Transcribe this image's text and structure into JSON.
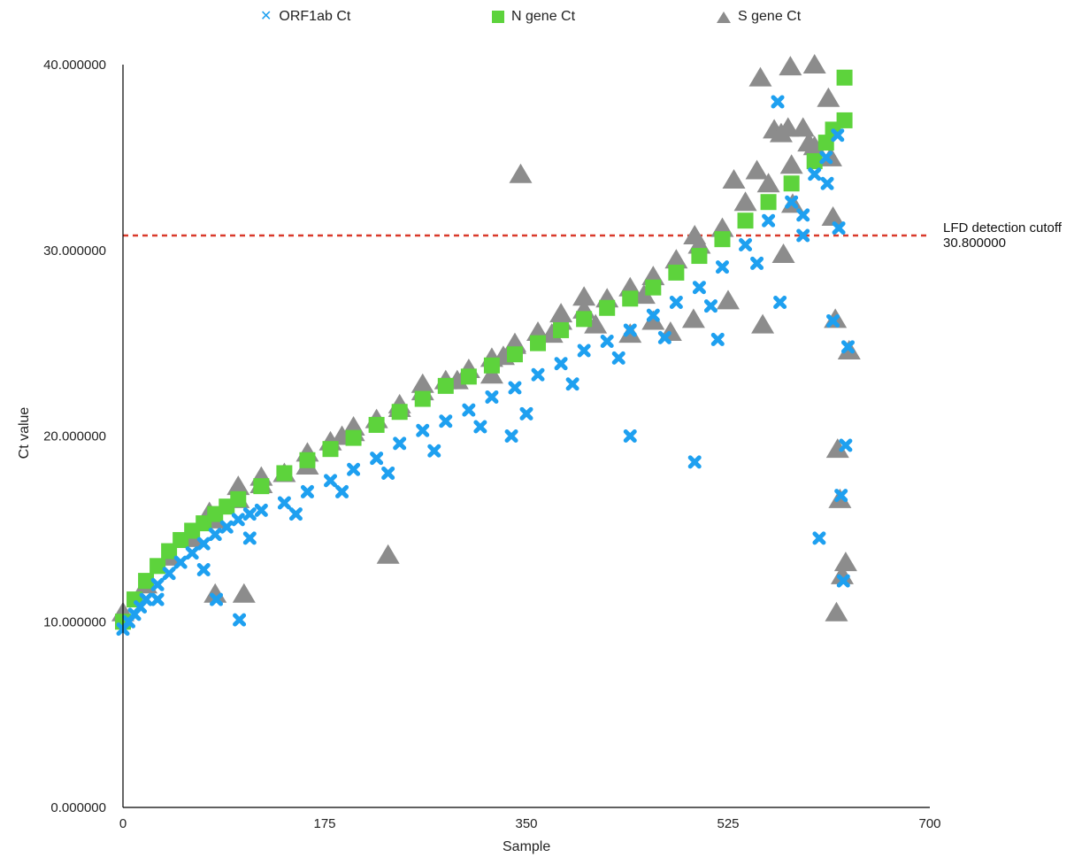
{
  "chart_data": {
    "type": "scatter",
    "title": "",
    "xlabel": "Sample",
    "ylabel": "Ct value",
    "xlim": [
      0,
      700
    ],
    "ylim": [
      0,
      40
    ],
    "x_ticks": [
      0,
      175,
      350,
      525,
      700
    ],
    "x_tick_labels": [
      "0",
      "175",
      "350",
      "525",
      "700"
    ],
    "y_ticks": [
      0,
      10,
      20,
      30,
      40
    ],
    "y_tick_labels": [
      "0.000000",
      "10.000000",
      "20.000000",
      "30.000000",
      "40.000000"
    ],
    "grid": false,
    "legend_position": "top",
    "reference_line": {
      "y": 30.8,
      "color": "#d93a2b",
      "style": "dashed",
      "label_line1": "LFD detection cutoff",
      "label_line2": "30.800000"
    },
    "series": [
      {
        "name": "ORF1ab Ct",
        "marker": "x",
        "color": "#1ea0f0",
        "x": [
          0,
          5,
          10,
          15,
          20,
          30,
          40,
          50,
          60,
          70,
          80,
          90,
          100,
          110,
          120,
          140,
          160,
          180,
          200,
          220,
          240,
          260,
          280,
          300,
          320,
          340,
          360,
          380,
          400,
          420,
          440,
          460,
          480,
          500,
          520,
          540,
          560,
          580,
          600,
          610,
          620,
          30,
          70,
          110,
          150,
          190,
          230,
          270,
          310,
          350,
          390,
          430,
          470,
          510,
          550,
          590,
          81,
          101,
          337,
          440,
          496,
          516,
          568,
          570,
          590,
          604,
          611,
          616,
          621,
          623,
          625,
          627,
          629
        ],
        "y": [
          9.6,
          10.0,
          10.4,
          10.8,
          11.2,
          12.0,
          12.6,
          13.2,
          13.7,
          14.2,
          14.7,
          15.1,
          15.5,
          15.8,
          16.0,
          16.4,
          17.0,
          17.6,
          18.2,
          18.8,
          19.6,
          20.3,
          20.8,
          21.4,
          22.1,
          22.6,
          23.3,
          23.9,
          24.6,
          25.1,
          25.7,
          26.5,
          27.2,
          28.0,
          29.1,
          30.3,
          31.6,
          32.6,
          34.1,
          35.0,
          36.2,
          11.2,
          12.8,
          14.5,
          15.8,
          17.0,
          18.0,
          19.2,
          20.5,
          21.2,
          22.8,
          24.2,
          25.3,
          27.0,
          29.3,
          31.9,
          11.2,
          10.1,
          20.0,
          20.0,
          18.6,
          25.2,
          38.0,
          27.2,
          30.8,
          14.5,
          33.6,
          26.2,
          31.2,
          16.8,
          12.2,
          19.5,
          24.8
        ],
        "labels": []
      },
      {
        "name": "N gene Ct",
        "marker": "square",
        "color": "#5dd33c",
        "x": [
          0,
          10,
          20,
          30,
          40,
          50,
          60,
          70,
          80,
          90,
          100,
          120,
          140,
          160,
          180,
          200,
          220,
          240,
          260,
          280,
          300,
          320,
          340,
          360,
          380,
          400,
          420,
          440,
          460,
          480,
          500,
          520,
          540,
          560,
          580,
          600,
          610,
          616,
          626,
          626
        ],
        "y": [
          10.0,
          11.2,
          12.2,
          13.0,
          13.8,
          14.4,
          14.9,
          15.3,
          15.8,
          16.2,
          16.6,
          17.3,
          18.0,
          18.7,
          19.3,
          19.9,
          20.6,
          21.3,
          22.0,
          22.7,
          23.2,
          23.8,
          24.4,
          25.0,
          25.7,
          26.3,
          26.9,
          27.4,
          28.0,
          28.8,
          29.7,
          30.6,
          31.6,
          32.6,
          33.6,
          34.8,
          35.8,
          36.5,
          37.0,
          39.3
        ],
        "labels": []
      },
      {
        "name": "S gene Ct",
        "marker": "triangle",
        "color": "#8c8c8c",
        "x": [
          0,
          20,
          40,
          60,
          80,
          100,
          120,
          140,
          160,
          180,
          200,
          220,
          240,
          260,
          280,
          300,
          320,
          340,
          360,
          380,
          400,
          420,
          440,
          460,
          480,
          500,
          520,
          540,
          560,
          580,
          600,
          75,
          100,
          80,
          105,
          120,
          160,
          190,
          200,
          240,
          260,
          290,
          320,
          330,
          340,
          345,
          372,
          380,
          400,
          410,
          440,
          452,
          460,
          475,
          495,
          496,
          525,
          530,
          550,
          553,
          555,
          565,
          571,
          573,
          577,
          579,
          581,
          590,
          595,
          600,
          612,
          614,
          616,
          618,
          619,
          620,
          622,
          624,
          627,
          630,
          230
        ],
        "y": [
          10.5,
          12.0,
          13.5,
          14.5,
          15.5,
          16.6,
          17.4,
          18.0,
          19.1,
          19.7,
          20.2,
          20.9,
          21.7,
          22.4,
          23.0,
          23.6,
          24.2,
          24.9,
          25.6,
          26.2,
          26.8,
          27.4,
          28.0,
          28.6,
          29.5,
          30.3,
          31.2,
          32.6,
          33.6,
          34.6,
          35.6,
          15.9,
          17.3,
          11.5,
          11.5,
          17.8,
          18.4,
          20.0,
          20.5,
          21.5,
          22.8,
          23.0,
          23.3,
          24.3,
          25.0,
          34.1,
          25.5,
          26.6,
          27.5,
          26.0,
          25.5,
          27.6,
          26.2,
          25.6,
          26.3,
          30.8,
          27.3,
          33.8,
          34.3,
          39.3,
          26.0,
          36.5,
          36.3,
          29.8,
          36.6,
          39.9,
          32.5,
          36.6,
          35.8,
          40.0,
          38.2,
          35.0,
          31.8,
          26.3,
          10.5,
          19.3,
          16.6,
          12.5,
          13.2,
          24.6,
          13.6
        ],
        "labels": []
      }
    ]
  }
}
